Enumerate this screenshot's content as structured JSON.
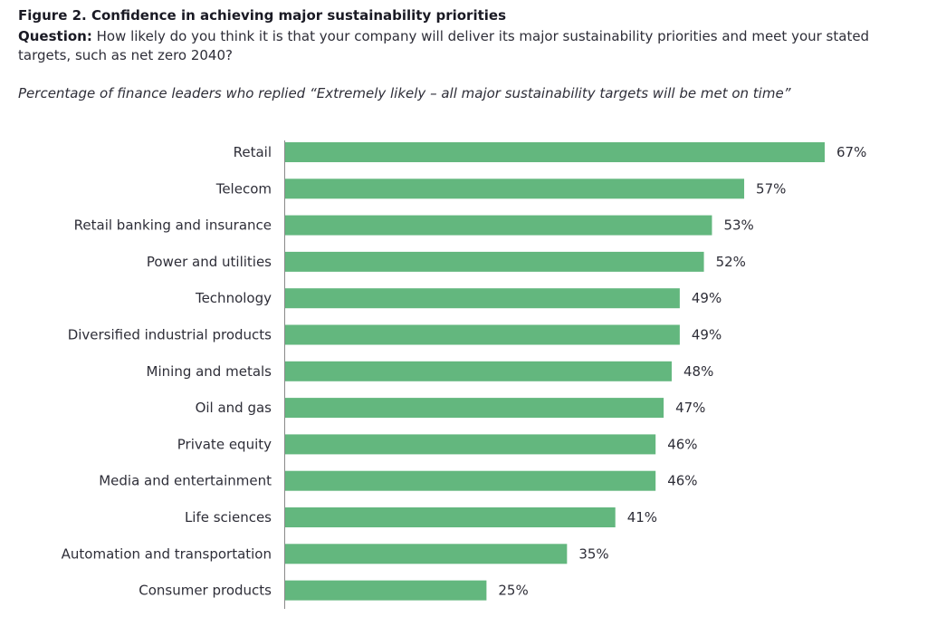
{
  "figure": {
    "title": "Figure 2. Confidence in achieving major sustainability priorities",
    "question_label": "Question:",
    "question_text": " How likely do you think it is that your company will deliver its major sustainability priorities and meet your stated targets, such as net zero 2040?",
    "subtitle": "Percentage of finance leaders who replied “Extremely likely – all major sustainability targets will be met on time”"
  },
  "chart_data": {
    "type": "bar",
    "orientation": "horizontal",
    "title": "Figure 2. Confidence in achieving major sustainability priorities",
    "xlabel": "",
    "ylabel": "",
    "categories": [
      "Retail",
      "Telecom",
      "Retail banking and insurance",
      "Power and utilities",
      "Technology",
      "Diversified industrial products",
      "Mining and metals",
      "Oil and gas",
      "Private equity",
      "Media and entertainment",
      "Life sciences",
      "Automation and transportation",
      "Consumer products"
    ],
    "values": [
      67,
      57,
      53,
      52,
      49,
      49,
      48,
      47,
      46,
      46,
      41,
      35,
      25
    ],
    "value_labels": [
      "67%",
      "57%",
      "53%",
      "52%",
      "49%",
      "49%",
      "48%",
      "47%",
      "46%",
      "46%",
      "41%",
      "35%",
      "25%"
    ],
    "unit": "%",
    "xlim": [
      0,
      67
    ],
    "grid": false,
    "legend": "none",
    "bar_color": "#63b77e"
  }
}
